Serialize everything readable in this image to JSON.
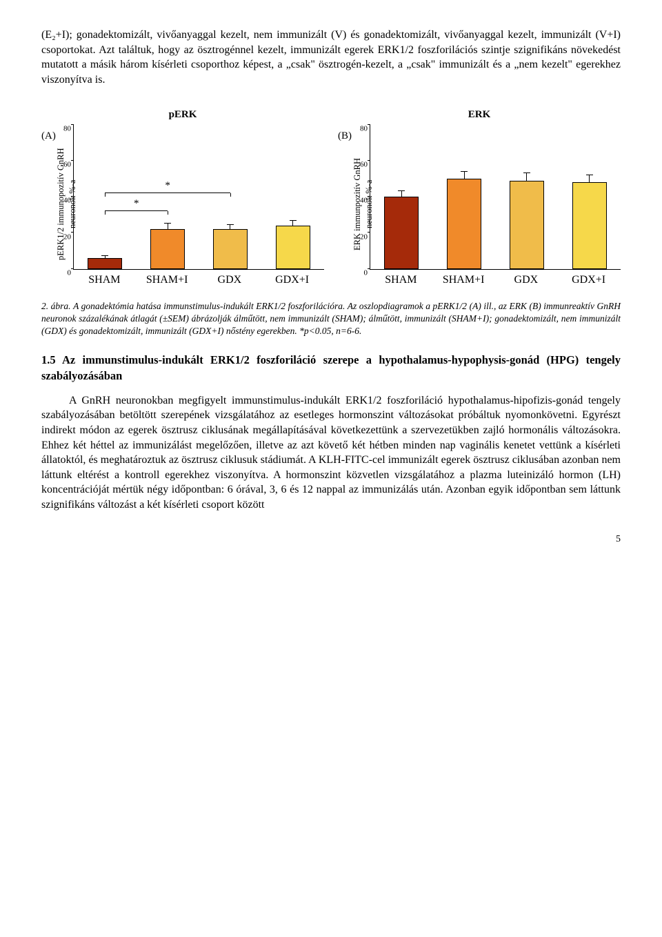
{
  "intro_para": "(E₂+I); gonadektomizált, vivőanyaggal kezelt, nem immunizált (V) és gonadektomizált, vivőanyaggal kezelt, immunizált (V+I) csoportokat. Azt találtuk, hogy az ösztrogénnel kezelt, immunizált egerek ERK1/2 foszforilációs szintje szignifikáns növekedést mutatott a másik három kísérleti csoporthoz képest, a „csak\" ösztrogén-kezelt, a „csak\" immunizált és a „nem kezelt\" egerekhez viszonyítva is.",
  "chartA": {
    "type": "bar",
    "top_title": "pERK",
    "panel_letter": "(A)",
    "ylabel": "pERK1/2 immunopozitív GnRH\nneuronok %-a",
    "ylabel_fontsize": 12.5,
    "ylim": [
      0,
      80
    ],
    "ytick_step": 20,
    "yticks": [
      0,
      20,
      40,
      60,
      80
    ],
    "categories": [
      "SHAM",
      "SHAM+I",
      "GDX",
      "GDX+I"
    ],
    "values": [
      6,
      22,
      22,
      24
    ],
    "err": [
      1,
      3,
      2.5,
      2.5
    ],
    "bar_colors": [
      "#a52a0a",
      "#f08a2a",
      "#f0bc4a",
      "#f6d84a"
    ],
    "bar_border": "#000000",
    "bar_width": 0.55,
    "sig": {
      "bars": [
        {
          "from_idx": 0,
          "to_idx": 1,
          "y": 32,
          "star": "*",
          "drop": 2
        },
        {
          "from_idx": 0,
          "to_idx": 2,
          "y": 42,
          "star": "*",
          "drop": 2
        }
      ],
      "star_fontsize": 15
    },
    "background_color": "#ffffff",
    "axis_color": "#000000"
  },
  "chartB": {
    "type": "bar",
    "top_title": "ERK",
    "panel_letter": "(B)",
    "ylabel": "ERK immunpozitív GnRH\nneuronok %-a",
    "ylabel_fontsize": 12.5,
    "ylim": [
      0,
      80
    ],
    "ytick_step": 20,
    "yticks": [
      0,
      20,
      40,
      60,
      80
    ],
    "categories": [
      "SHAM",
      "SHAM+I",
      "GDX",
      "GDX+I"
    ],
    "values": [
      40,
      50,
      49,
      48
    ],
    "err": [
      3,
      4,
      4,
      4
    ],
    "bar_colors": [
      "#a52a0a",
      "#f08a2a",
      "#f0bc4a",
      "#f6d84a"
    ],
    "bar_border": "#000000",
    "bar_width": 0.55,
    "background_color": "#ffffff",
    "axis_color": "#000000"
  },
  "caption": {
    "label": "2. ábra.",
    "bold_sentence": "A gonadektómia hatása immunstimulus-indukált ERK1/2 foszforilációra.",
    "rest": " Az oszlopdiagramok a pERK1/2 (A) ill., az ERK (B) immunreaktív GnRH neuronok százalékának átlagát (±SEM) ábrázolják álműtött, nem immunizált (SHAM); álműtött, immunizált (SHAM+I); gonadektomizált, nem immunizált (GDX) és gonadektomizált, immunizált (GDX+I) nőstény egerekben. *p<0.05, n=6-6."
  },
  "section_title": "1.5 Az immunstimulus-indukált ERK1/2 foszforiláció szerepe a hypothalamus-hypophysis-gonád (HPG) tengely szabályozásában",
  "body_para": "A GnRH neuronokban megfigyelt immunstimulus-indukált ERK1/2 foszforiláció hypothalamus-hipofizis-gonád tengely szabályozásában betöltött szerepének vizsgálatához az esetleges hormonszint változásokat próbáltuk nyomonkövetni. Egyrészt indirekt módon az egerek ösztrusz ciklusának megállapításával következettünk a szervezetükben zajló hormonális változásokra. Ehhez két héttel az immunizálást megelőzően, illetve az azt követő két hétben minden nap vaginális kenetet vettünk a kísérleti állatoktól, és meghatároztuk az ösztrusz ciklusuk stádiumát. A KLH-FITC-cel immunizált egerek ösztrusz ciklusában azonban nem láttunk eltérést a kontroll egerekhez viszonyítva. A hormonszint közvetlen vizsgálatához a plazma luteinizáló hormon (LH) koncentrációját mértük négy időpontban: 6 órával, 3, 6 és 12 nappal az immunizálás után. Azonban egyik időpontban sem láttunk szignifikáns változást a két kísérleti csoport között",
  "page_number": "5"
}
